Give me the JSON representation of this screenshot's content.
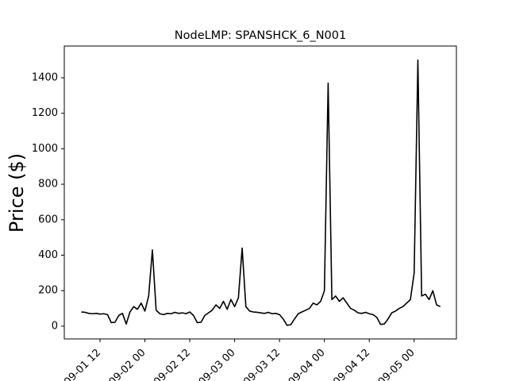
{
  "chart_data": {
    "type": "line",
    "title": "NodeLMP: SPANSHCK_6_N001",
    "y_label": "Price ($)",
    "x": [
      7,
      8,
      9,
      10,
      11,
      12,
      13,
      14,
      15,
      16,
      17,
      18,
      19,
      20,
      21,
      22,
      23,
      24,
      25,
      26,
      27,
      28,
      29,
      30,
      31,
      32,
      33,
      34,
      35,
      36,
      37,
      38,
      39,
      40,
      41,
      42,
      43,
      44,
      45,
      46,
      47,
      48,
      49,
      50,
      51,
      52,
      53,
      54,
      55,
      56,
      57,
      58,
      59,
      60,
      61,
      62,
      63,
      64,
      65,
      66,
      67,
      68,
      69,
      70,
      71,
      72,
      73,
      74,
      75,
      76,
      77,
      78,
      79,
      80,
      81,
      82,
      83,
      84,
      85,
      86,
      87,
      88,
      89,
      90,
      91,
      92,
      93,
      94,
      95,
      96,
      97,
      98,
      99,
      100,
      101,
      102,
      103
    ],
    "series": [
      {
        "color": "#000000",
        "values": [
          80,
          78,
          72,
          70,
          72,
          68,
          70,
          65,
          20,
          22,
          60,
          72,
          12,
          80,
          110,
          95,
          130,
          85,
          170,
          430,
          90,
          70,
          65,
          72,
          70,
          78,
          72,
          75,
          70,
          80,
          60,
          20,
          22,
          60,
          75,
          90,
          120,
          100,
          140,
          95,
          150,
          110,
          160,
          440,
          110,
          85,
          80,
          78,
          75,
          72,
          78,
          70,
          72,
          65,
          40,
          5,
          8,
          40,
          70,
          80,
          90,
          100,
          130,
          120,
          140,
          200,
          1370,
          150,
          170,
          140,
          160,
          130,
          100,
          90,
          75,
          72,
          78,
          70,
          65,
          50,
          10,
          12,
          40,
          75,
          85,
          100,
          110,
          130,
          150,
          300,
          1500,
          170,
          180,
          150,
          200,
          120,
          110
        ]
      }
    ],
    "xlim": [
      2.44,
      107.3
    ],
    "ylim": [
      -72,
      1579
    ],
    "xticks": [
      {
        "value": 12,
        "label": "09-01 12"
      },
      {
        "value": 24,
        "label": "09-02 00"
      },
      {
        "value": 36,
        "label": "09-02 12"
      },
      {
        "value": 48,
        "label": "09-03 00"
      },
      {
        "value": 60,
        "label": "09-03 12"
      },
      {
        "value": 72,
        "label": "09-04 00"
      },
      {
        "value": 84,
        "label": "09-04 12"
      },
      {
        "value": 96,
        "label": "09-05 00"
      }
    ],
    "yticks": [
      0,
      200,
      400,
      600,
      800,
      1000,
      1200,
      1400
    ]
  }
}
